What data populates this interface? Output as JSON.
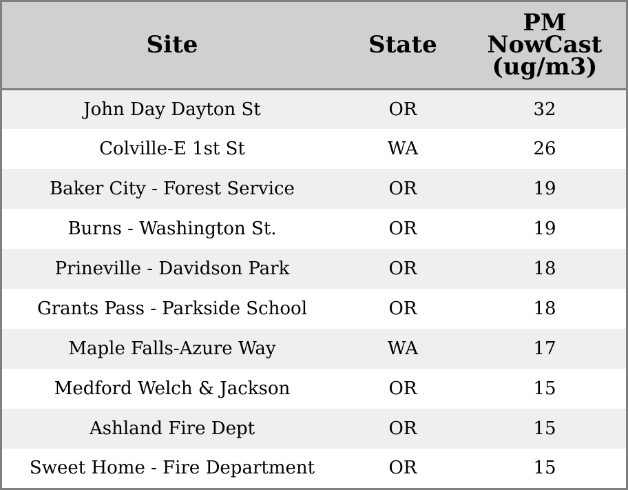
{
  "chart_data": {
    "type": "table",
    "columns": [
      "Site",
      "State",
      "PM NowCast (ug/m3)"
    ],
    "header_lines": [
      [
        "Site"
      ],
      [
        "State"
      ],
      [
        "PM",
        "NowCast",
        "(ug/m3)"
      ]
    ],
    "rows": [
      {
        "site": "John Day Dayton St",
        "state": "OR",
        "pm": "32"
      },
      {
        "site": "Colville-E 1st St",
        "state": "WA",
        "pm": "26"
      },
      {
        "site": "Baker City - Forest Service",
        "state": "OR",
        "pm": "19"
      },
      {
        "site": "Burns - Washington St.",
        "state": "OR",
        "pm": "19"
      },
      {
        "site": "Prineville - Davidson Park",
        "state": "OR",
        "pm": "18"
      },
      {
        "site": "Grants Pass - Parkside School",
        "state": "OR",
        "pm": "18"
      },
      {
        "site": "Maple Falls-Azure Way",
        "state": "WA",
        "pm": "17"
      },
      {
        "site": "Medford Welch & Jackson",
        "state": "OR",
        "pm": "15"
      },
      {
        "site": "Ashland Fire Dept",
        "state": "OR",
        "pm": "15"
      },
      {
        "site": "Sweet Home - Fire Department",
        "state": "OR",
        "pm": "15"
      }
    ]
  },
  "colors": {
    "header_bg": "#d0d0d0",
    "row_alt_bg": "#efefef",
    "row_bg": "#ffffff",
    "border": "#7f7f7f"
  }
}
